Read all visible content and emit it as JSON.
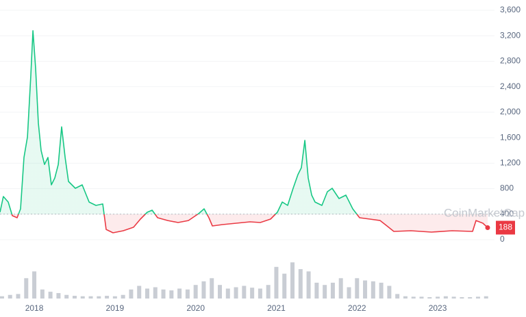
{
  "chart_data": {
    "type": "line",
    "x": [
      2017.575,
      2017.617,
      2017.677,
      2017.728,
      2017.787,
      2017.83,
      2017.872,
      2017.915,
      2017.957,
      2017.983,
      2018.016,
      2018.05,
      2018.084,
      2018.127,
      2018.169,
      2018.212,
      2018.254,
      2018.297,
      2018.339,
      2018.382,
      2018.424,
      2018.509,
      2018.594,
      2018.679,
      2018.764,
      2018.848,
      2018.891,
      2018.976,
      2019.103,
      2019.23,
      2019.315,
      2019.4,
      2019.46,
      2019.528,
      2019.655,
      2019.782,
      2019.91,
      2020.037,
      2020.105,
      2020.164,
      2020.207,
      2020.334,
      2020.504,
      2020.674,
      2020.801,
      2020.928,
      2021.013,
      2021.073,
      2021.14,
      2021.208,
      2021.268,
      2021.31,
      2021.353,
      2021.395,
      2021.438,
      2021.48,
      2021.565,
      2021.633,
      2021.692,
      2021.777,
      2021.862,
      2021.947,
      2022.032,
      2022.159,
      2022.286,
      2022.371,
      2022.456,
      2022.668,
      2022.923,
      2023.178,
      2023.432,
      2023.475,
      2023.56,
      2023.619
    ],
    "series": [
      {
        "values": [
          430,
          677,
          590,
          376,
          344,
          484,
          1290,
          1612,
          2580,
          3280,
          2690,
          1830,
          1400,
          1180,
          1290,
          860,
          967,
          1180,
          1770,
          1290,
          913,
          806,
          860,
          590,
          537,
          560,
          160,
          107,
          140,
          194,
          322,
          430,
          462,
          344,
          300,
          269,
          300,
          408,
          484,
          344,
          215,
          236,
          258,
          279,
          269,
          322,
          430,
          590,
          537,
          806,
          1021,
          1128,
          1558,
          967,
          698,
          590,
          537,
          752,
          806,
          645,
          698,
          484,
          344,
          322,
          300,
          215,
          129,
          140,
          118,
          140,
          129,
          300,
          258,
          188
        ]
      }
    ],
    "up_color": "#16c784",
    "down_color": "#ea3943",
    "baseline": 400,
    "xlim": [
      2017.575,
      2023.704
    ],
    "xticks": [
      2018,
      2019,
      2020,
      2021,
      2022,
      2023
    ],
    "ylim": [
      0,
      3600
    ],
    "yticks": [
      0,
      400,
      800,
      {
        "value": 1200,
        "label": "1,200"
      },
      {
        "value": 1600,
        "label": "1,600"
      },
      {
        "value": 2000,
        "label": "2,000"
      },
      {
        "value": 2400,
        "label": "2,400"
      },
      {
        "value": 2800,
        "label": "2,800"
      },
      {
        "value": 3200,
        "label": "3,200"
      },
      {
        "value": 3600,
        "label": "3,600"
      }
    ],
    "grid": true,
    "watermark": "CoinMarketCap",
    "volume": {
      "color": "#c9cdd4",
      "ylim": [
        0,
        100
      ],
      "x": [
        2017.6,
        2017.7,
        2017.8,
        2017.9,
        2018.0,
        2018.1,
        2018.2,
        2018.3,
        2018.4,
        2018.5,
        2018.6,
        2018.7,
        2018.8,
        2018.9,
        2019.0,
        2019.1,
        2019.2,
        2019.3,
        2019.4,
        2019.5,
        2019.6,
        2019.7,
        2019.8,
        2019.9,
        2020.0,
        2020.1,
        2020.2,
        2020.3,
        2020.4,
        2020.5,
        2020.6,
        2020.7,
        2020.8,
        2020.9,
        2021.0,
        2021.1,
        2021.2,
        2021.3,
        2021.4,
        2021.5,
        2021.6,
        2021.7,
        2021.8,
        2021.9,
        2022.0,
        2022.1,
        2022.2,
        2022.3,
        2022.4,
        2022.5,
        2022.6,
        2022.7,
        2022.8,
        2022.9,
        2023.0,
        2023.1,
        2023.2,
        2023.3,
        2023.4,
        2023.5,
        2023.6
      ],
      "values": [
        5,
        8,
        10,
        45,
        60,
        20,
        15,
        12,
        8,
        6,
        5,
        5,
        5,
        6,
        5,
        8,
        20,
        28,
        22,
        25,
        20,
        18,
        22,
        20,
        30,
        38,
        45,
        30,
        22,
        25,
        28,
        24,
        22,
        30,
        70,
        55,
        80,
        65,
        60,
        35,
        30,
        35,
        45,
        25,
        45,
        40,
        38,
        35,
        28,
        10,
        5,
        4,
        4,
        3,
        4,
        5,
        4,
        3,
        3,
        4,
        5
      ]
    }
  }
}
